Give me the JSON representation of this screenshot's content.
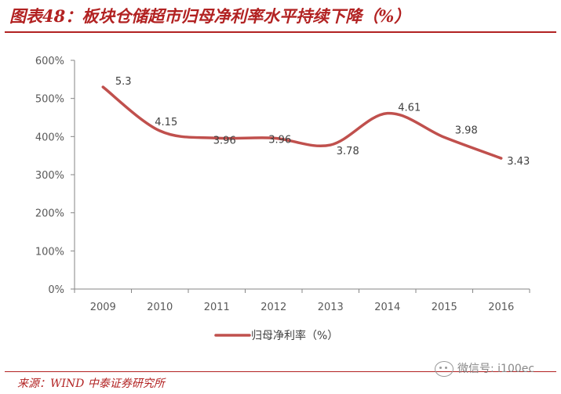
{
  "header": {
    "title": "图表48：板块仓储超市归母净利率水平持续下降（%）"
  },
  "chart_data": {
    "type": "line",
    "categories": [
      "2009",
      "2010",
      "2011",
      "2012",
      "2013",
      "2014",
      "2015",
      "2016"
    ],
    "series": [
      {
        "name": "归母净利率（%）",
        "values": [
          5.3,
          4.15,
          3.96,
          3.96,
          3.78,
          4.61,
          3.98,
          3.43
        ],
        "labels": [
          "5.3",
          "4.15",
          "3.96",
          "3.96",
          "3.78",
          "4.61",
          "3.98",
          "3.43"
        ],
        "color": "#c0504d"
      }
    ],
    "yticks": [
      "0%",
      "100%",
      "200%",
      "300%",
      "400%",
      "500%",
      "600%"
    ],
    "ylim": [
      0,
      6
    ],
    "grid": false,
    "legend": "bottom"
  },
  "footer": {
    "source": "来源：WIND 中泰证券研究所"
  },
  "watermark": {
    "text": "微信号: i100ec"
  }
}
